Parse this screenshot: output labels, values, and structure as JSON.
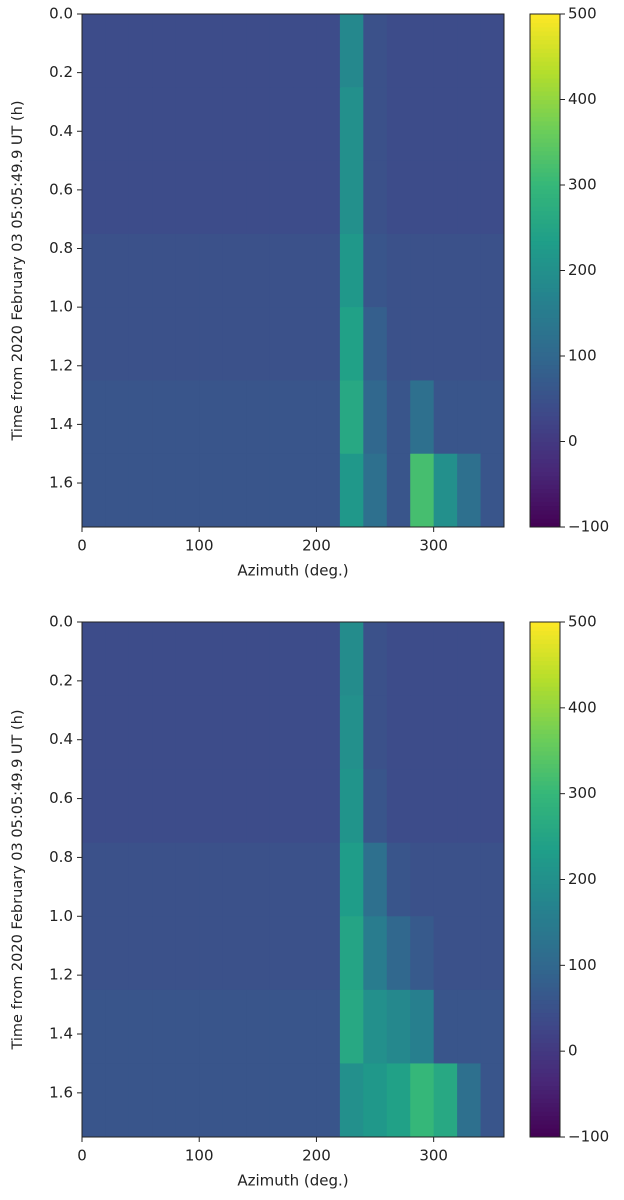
{
  "chart_data": [
    {
      "type": "heatmap",
      "xlabel": "Azimuth (deg.)",
      "ylabel": "Time from 2020 February 03 05:05:49.9 UT (h)",
      "xbins": [
        0,
        20,
        40,
        60,
        80,
        100,
        120,
        140,
        160,
        180,
        200,
        220,
        240,
        260,
        280,
        300,
        320,
        340,
        360
      ],
      "ybins": [
        0,
        0.25,
        0.5,
        0.75,
        1,
        1.25,
        1.5,
        1.75
      ],
      "values": [
        [
          40,
          40,
          40,
          40,
          40,
          40,
          40,
          40,
          40,
          40,
          40,
          180,
          50,
          40,
          40,
          40,
          40,
          40
        ],
        [
          40,
          40,
          40,
          40,
          40,
          40,
          40,
          40,
          40,
          40,
          40,
          200,
          50,
          40,
          40,
          40,
          40,
          40
        ],
        [
          40,
          40,
          40,
          40,
          40,
          40,
          40,
          40,
          40,
          40,
          40,
          200,
          50,
          40,
          40,
          40,
          40,
          40
        ],
        [
          50,
          50,
          50,
          50,
          50,
          50,
          50,
          50,
          50,
          50,
          50,
          220,
          60,
          50,
          50,
          50,
          50,
          50
        ],
        [
          50,
          50,
          50,
          50,
          50,
          50,
          50,
          50,
          50,
          50,
          50,
          240,
          80,
          50,
          50,
          50,
          50,
          50
        ],
        [
          60,
          60,
          60,
          60,
          60,
          60,
          60,
          60,
          60,
          60,
          60,
          260,
          100,
          60,
          120,
          60,
          60,
          60
        ],
        [
          60,
          60,
          60,
          60,
          60,
          60,
          60,
          60,
          60,
          60,
          60,
          220,
          120,
          60,
          320,
          200,
          120,
          60
        ]
      ],
      "xlim": [
        0,
        360
      ],
      "xticks": [
        0,
        100,
        200,
        300
      ],
      "ylim": [
        0,
        1.75
      ],
      "y_inverted": true,
      "yticks": [
        {
          "value": 0,
          "label": "0.0"
        },
        0.2,
        0.4,
        0.6,
        0.8,
        {
          "value": 1,
          "label": "1.0"
        },
        1.2,
        1.4,
        1.6
      ],
      "clim": [
        -100,
        500
      ],
      "cticks": [
        {
          "value": -100,
          "label": "−100"
        },
        0,
        100,
        200,
        300,
        400,
        500
      ],
      "colormap": [
        "#440154",
        "#482878",
        "#3e4989",
        "#31688e",
        "#26828e",
        "#1f9e89",
        "#35b779",
        "#6ece58",
        "#b5de2b",
        "#fde725"
      ]
    },
    {
      "type": "heatmap",
      "xlabel": "Azimuth (deg.)",
      "ylabel": "Time from 2020 February 03 05:05:49.9 UT (h)",
      "xbins": [
        0,
        20,
        40,
        60,
        80,
        100,
        120,
        140,
        160,
        180,
        200,
        220,
        240,
        260,
        280,
        300,
        320,
        340,
        360
      ],
      "ybins": [
        0,
        0.25,
        0.5,
        0.75,
        1,
        1.25,
        1.5,
        1.75
      ],
      "values": [
        [
          40,
          40,
          40,
          40,
          40,
          40,
          40,
          40,
          40,
          40,
          40,
          190,
          50,
          40,
          40,
          40,
          40,
          40
        ],
        [
          40,
          40,
          40,
          40,
          40,
          40,
          40,
          40,
          40,
          40,
          40,
          200,
          50,
          40,
          40,
          40,
          40,
          40
        ],
        [
          40,
          40,
          40,
          40,
          40,
          40,
          40,
          40,
          40,
          40,
          40,
          210,
          60,
          40,
          40,
          40,
          40,
          40
        ],
        [
          50,
          50,
          50,
          50,
          50,
          50,
          50,
          50,
          50,
          50,
          50,
          230,
          120,
          60,
          50,
          50,
          50,
          50
        ],
        [
          50,
          50,
          50,
          50,
          50,
          50,
          50,
          50,
          50,
          50,
          50,
          250,
          150,
          100,
          70,
          50,
          50,
          50
        ],
        [
          60,
          60,
          60,
          60,
          60,
          60,
          60,
          60,
          60,
          60,
          60,
          260,
          200,
          180,
          160,
          60,
          60,
          60
        ],
        [
          60,
          60,
          60,
          60,
          60,
          60,
          60,
          60,
          60,
          60,
          60,
          200,
          220,
          240,
          300,
          260,
          120,
          60
        ]
      ],
      "xlim": [
        0,
        360
      ],
      "xticks": [
        0,
        100,
        200,
        300
      ],
      "ylim": [
        0,
        1.75
      ],
      "y_inverted": true,
      "yticks": [
        {
          "value": 0,
          "label": "0.0"
        },
        0.2,
        0.4,
        0.6,
        0.8,
        {
          "value": 1,
          "label": "1.0"
        },
        1.2,
        1.4,
        1.6
      ],
      "clim": [
        -100,
        500
      ],
      "cticks": [
        {
          "value": -100,
          "label": "−100"
        },
        0,
        100,
        200,
        300,
        400,
        500
      ],
      "colormap": [
        "#440154",
        "#482878",
        "#3e4989",
        "#31688e",
        "#26828e",
        "#1f9e89",
        "#35b779",
        "#6ece58",
        "#b5de2b",
        "#fde725"
      ]
    }
  ]
}
